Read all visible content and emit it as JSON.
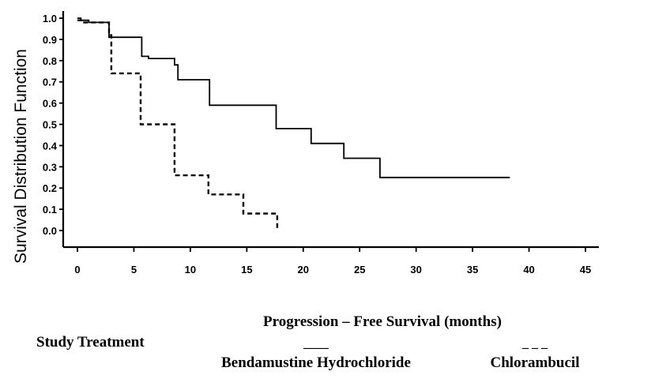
{
  "chart_data": {
    "type": "line",
    "title": "",
    "xlabel": "Progression – Free Survival (months)",
    "ylabel": "Survival Distribution Function",
    "xlim": [
      0,
      45
    ],
    "ylim": [
      0,
      1.0
    ],
    "x_ticks": [
      0,
      5,
      10,
      15,
      20,
      25,
      30,
      35,
      40,
      45
    ],
    "y_ticks": [
      "1.0",
      "0.9",
      "0.8",
      "0.7",
      "0.6",
      "0.5",
      "0.4",
      "0.3",
      "0.2",
      "0.1",
      "0.0"
    ],
    "grid": false,
    "series": [
      {
        "name": "Bendamustine Hydrochloride",
        "style": "solid",
        "step_points": [
          [
            0,
            1.0
          ],
          [
            0.3,
            0.99
          ],
          [
            1,
            0.98
          ],
          [
            2.8,
            0.91
          ],
          [
            5.7,
            0.82
          ],
          [
            6.3,
            0.81
          ],
          [
            8.6,
            0.78
          ],
          [
            8.9,
            0.71
          ],
          [
            11.7,
            0.59
          ],
          [
            17.6,
            0.48
          ],
          [
            20.7,
            0.41
          ],
          [
            23.6,
            0.34
          ],
          [
            26.8,
            0.25
          ],
          [
            38.3,
            0.25
          ]
        ]
      },
      {
        "name": "Chlorambucil",
        "style": "dashed",
        "step_points": [
          [
            0,
            0.99
          ],
          [
            0.5,
            0.98
          ],
          [
            2.8,
            0.92
          ],
          [
            3.0,
            0.74
          ],
          [
            5.6,
            0.5
          ],
          [
            8.6,
            0.26
          ],
          [
            11.6,
            0.17
          ],
          [
            14.7,
            0.08
          ],
          [
            17.7,
            0.0
          ]
        ]
      }
    ]
  },
  "legend": {
    "heading": "Study Treatment",
    "solid_marker": "____",
    "dashed_marker": "_ _ _",
    "solid_label": "Bendamustine Hydrochloride",
    "dashed_label": "Chlorambucil"
  }
}
